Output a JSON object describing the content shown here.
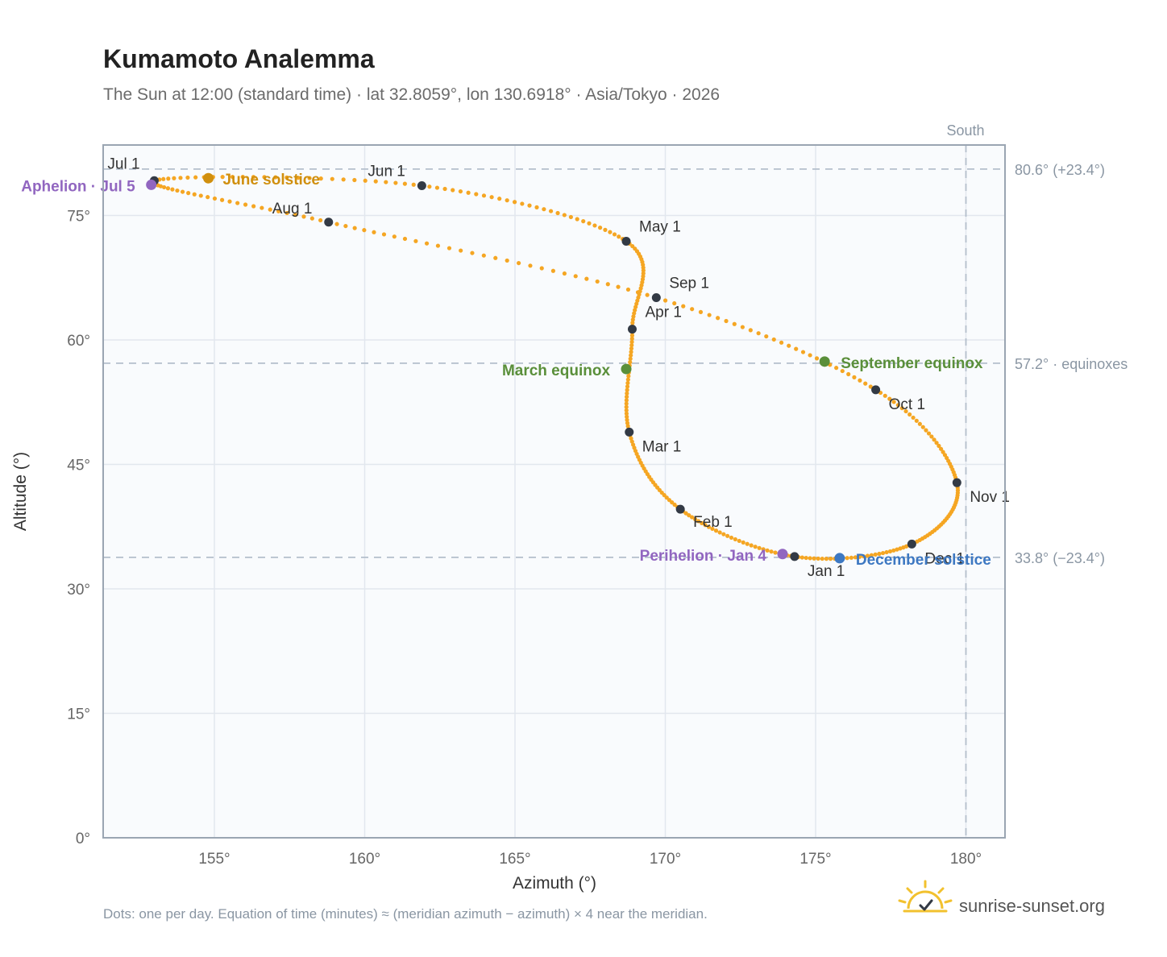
{
  "title": "Kumamoto Analemma",
  "subtitle": "The Sun at 12:00 (standard time) · lat 32.8059°, lon 130.6918° · Asia/Tokyo · 2026",
  "footnote": "Dots: one per day. Equation of time (minutes) ≈ (meridian azimuth − azimuth) × 4 near the meridian.",
  "brand": "sunrise-sunset.org",
  "colors": {
    "curve": "#f5a623",
    "month_marker": "#333a45",
    "equinox": "#5a8f3a",
    "june_solstice": "#d08f0e",
    "december_solstice": "#3d78c2",
    "apsis": "#9166c0",
    "plot_bg": "#f9fbfd",
    "grid": "#e2e7ee",
    "reference_line": "#b4bfcc",
    "frame": "#9aa5b2"
  },
  "chart_data": {
    "type": "scatter",
    "title": "Kumamoto Analemma",
    "xlabel": "Azimuth (°)",
    "ylabel": "Altitude (°)",
    "xlim": [
      151.3,
      181.3
    ],
    "ylim": [
      0,
      83.5
    ],
    "xticks": [
      155,
      160,
      165,
      170,
      175,
      180
    ],
    "xtick_labels": [
      "155°",
      "160°",
      "165°",
      "170°",
      "175°",
      "180°"
    ],
    "yticks": [
      0,
      15,
      30,
      45,
      60,
      75
    ],
    "ytick_labels": [
      "0°",
      "15°",
      "30°",
      "45°",
      "60°",
      "75°"
    ],
    "grid": true,
    "top_label": "South",
    "reference_lines": [
      {
        "axis": "x",
        "value": 180
      },
      {
        "axis": "y",
        "value": 80.6,
        "label": "80.6° (+23.4°)"
      },
      {
        "axis": "y",
        "value": 57.2,
        "label": "57.2° · equinoxes"
      },
      {
        "axis": "y",
        "value": 33.8,
        "label": "33.8° (−23.4°)"
      }
    ],
    "months": [
      {
        "label": "Jan 1",
        "az": 174.3,
        "alt": 33.9
      },
      {
        "label": "Feb 1",
        "az": 170.5,
        "alt": 39.6
      },
      {
        "label": "Mar 1",
        "az": 168.8,
        "alt": 48.9
      },
      {
        "label": "Apr 1",
        "az": 168.9,
        "alt": 61.3
      },
      {
        "label": "May 1",
        "az": 168.7,
        "alt": 71.9
      },
      {
        "label": "Jun 1",
        "az": 161.9,
        "alt": 78.6
      },
      {
        "label": "Jul 1",
        "az": 153.0,
        "alt": 79.2
      },
      {
        "label": "Aug 1",
        "az": 158.8,
        "alt": 74.2
      },
      {
        "label": "Sep 1",
        "az": 169.7,
        "alt": 65.1
      },
      {
        "label": "Oct 1",
        "az": 177.0,
        "alt": 54.0
      },
      {
        "label": "Nov 1",
        "az": 179.7,
        "alt": 42.8
      },
      {
        "label": "Dec 1",
        "az": 178.2,
        "alt": 35.4
      }
    ],
    "events": [
      {
        "label": "March equinox",
        "az": 168.7,
        "alt": 56.5,
        "color": "#5a8f3a"
      },
      {
        "label": "June solstice",
        "az": 154.8,
        "alt": 79.5,
        "color": "#d08f0e"
      },
      {
        "label": "September equinox",
        "az": 175.3,
        "alt": 57.4,
        "color": "#5a8f3a"
      },
      {
        "label": "December solstice",
        "az": 175.8,
        "alt": 33.7,
        "color": "#3d78c2"
      },
      {
        "label": "Perihelion · Jan 4",
        "az": 173.9,
        "alt": 34.2,
        "color": "#9166c0"
      },
      {
        "label": "Aphelion · Jul 5",
        "az": 152.9,
        "alt": 78.7,
        "color": "#9166c0"
      }
    ]
  }
}
